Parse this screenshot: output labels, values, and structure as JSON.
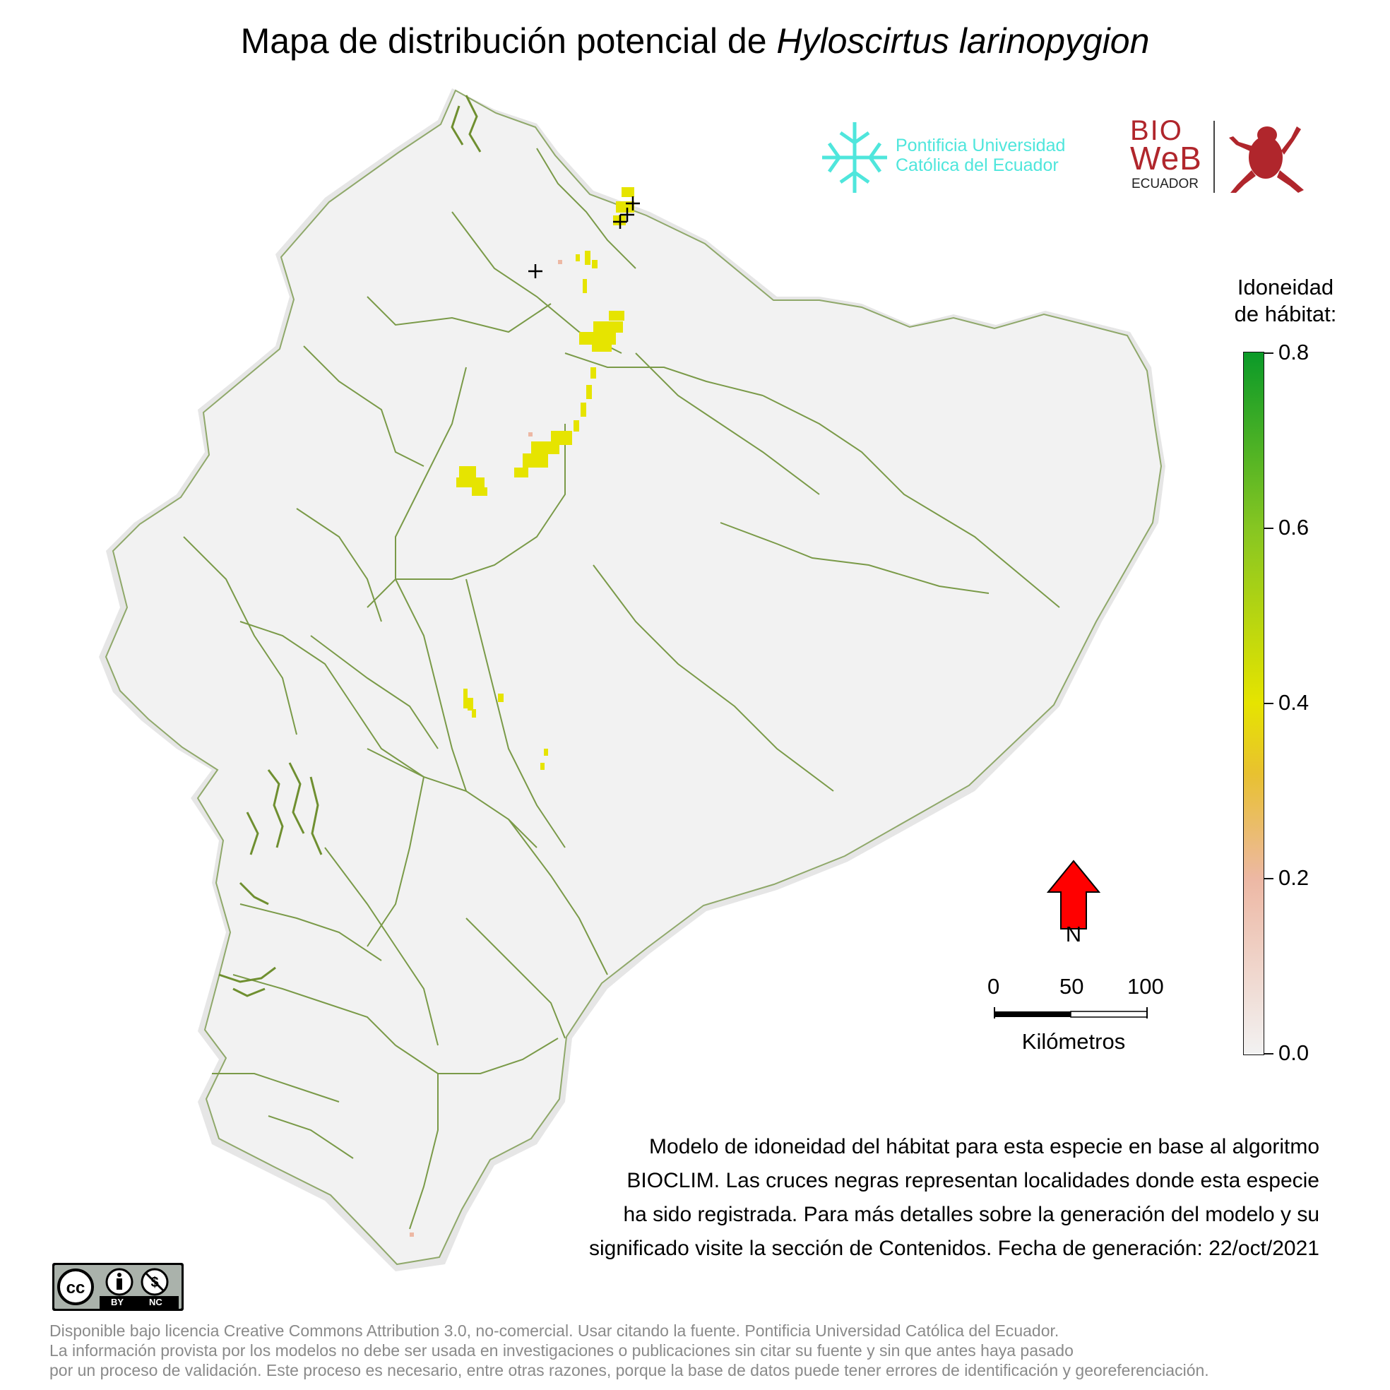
{
  "title": {
    "prefix": "Mapa de distribución potencial de ",
    "species": "Hyloscirtus larinopygion"
  },
  "logos": {
    "puce_line1": "Pontificia Universidad",
    "puce_line2": "Católica del Ecuador",
    "bioweb_line1": "BIO",
    "bioweb_line2": "WeB",
    "bioweb_line3": "ECUADOR"
  },
  "legend": {
    "title_line1": "Idoneidad",
    "title_line2": "de hábitat:",
    "ticks": [
      "0.8",
      "0.6",
      "0.4",
      "0.2",
      "0.0"
    ],
    "colors": {
      "min": "#f2f2f2",
      "low": "#edb8a4",
      "mid": "#e6e400",
      "high": "#0b9a28"
    }
  },
  "north": {
    "label": "N",
    "arrow_color": "#ff0000"
  },
  "scale_bar": {
    "labels": [
      "0",
      "50",
      "100"
    ],
    "unit": "Kilómetros"
  },
  "description": {
    "line1": "Modelo de idoneidad del hábitat para esta especie en base al algoritmo",
    "line2": "BIOCLIM. Las cruces negras representan localidades donde esta especie",
    "line3": "ha sido registrada. Para más detalles sobre la generación del modelo y su",
    "line4": "significado visite la sección de Contenidos. Fecha de generación: 22/oct/2021"
  },
  "license": {
    "badge_labels": [
      "BY",
      "NC"
    ],
    "line1": "Disponible bajo licencia Creative Commons Attribution 3.0, no-comercial. Usar citando la fuente. Pontificia Universidad Católica del Ecuador.",
    "line2": "La información provista por los modelos no debe ser usada en investigaciones o publicaciones sin citar su fuente y sin que antes haya pasado",
    "line3": "por un proceso de validación. Este proceso es necesario, entre otras razones, porque la base de datos puede tener errores de identificación y georeferenciación."
  },
  "map_colors": {
    "land": "#f2f2f2",
    "halo": "#e6e6e6",
    "border": "#7a9a48",
    "suitability_high": "#e6e400",
    "suitability_low": "#edb8a4",
    "record_marker": "#000000"
  }
}
